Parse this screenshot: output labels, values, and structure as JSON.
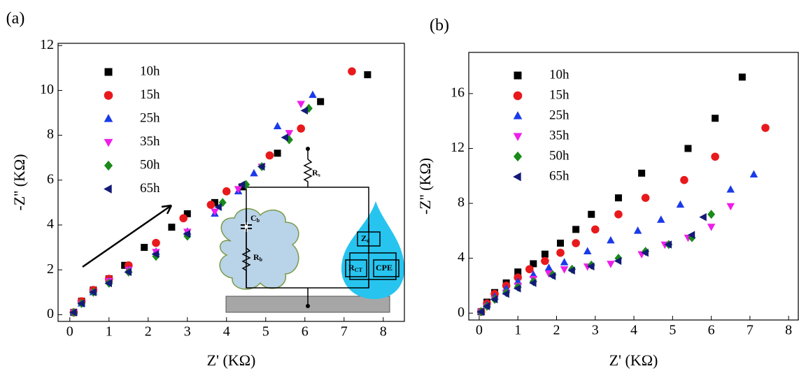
{
  "chart_data": [
    {
      "type": "scatter",
      "panel_label": "(a)",
      "x_label": "Z' (KΩ)",
      "y_label": "-Z'' (KΩ)",
      "xlim": [
        -0.3,
        8.54
      ],
      "ylim": [
        -0.3,
        12.1
      ],
      "xticks": [
        0,
        1,
        2,
        3,
        4,
        5,
        6,
        7,
        8
      ],
      "yticks": [
        0,
        2,
        4,
        6,
        8,
        10,
        12
      ],
      "legend_loc": "upper left",
      "series": [
        {
          "name": "10h",
          "color": "#000000",
          "marker": "square",
          "x": [
            0.1,
            0.3,
            0.6,
            1.0,
            1.4,
            1.9,
            2.6,
            3.0,
            3.7,
            4.4,
            5.3,
            6.4,
            7.6
          ],
          "values": [
            0.1,
            0.6,
            1.1,
            1.6,
            2.2,
            3.0,
            3.9,
            4.5,
            5.0,
            5.7,
            7.2,
            9.5,
            10.7
          ]
        },
        {
          "name": "15h",
          "color": "#e8191c",
          "marker": "circle",
          "x": [
            0.1,
            0.3,
            0.6,
            1.0,
            1.5,
            2.2,
            2.9,
            3.6,
            4.0,
            5.1,
            5.9,
            7.2
          ],
          "values": [
            0.1,
            0.6,
            1.1,
            1.6,
            2.2,
            3.2,
            4.3,
            4.9,
            5.5,
            7.1,
            8.3,
            10.85
          ]
        },
        {
          "name": "25h",
          "color": "#1a3be8",
          "marker": "triangle-up",
          "x": [
            0.1,
            0.3,
            0.6,
            1.0,
            1.5,
            2.2,
            3.0,
            3.7,
            4.3,
            4.7,
            5.3,
            6.2
          ],
          "values": [
            0.1,
            0.5,
            1.0,
            1.5,
            2.0,
            2.8,
            3.7,
            4.5,
            5.5,
            6.3,
            8.4,
            9.8
          ]
        },
        {
          "name": "35h",
          "color": "#ee1ee8",
          "marker": "triangle-down",
          "x": [
            0.1,
            0.3,
            0.6,
            1.0,
            1.5,
            2.2,
            3.0,
            3.7,
            4.3,
            4.9,
            5.6,
            5.9
          ],
          "values": [
            0.1,
            0.5,
            1.0,
            1.5,
            2.0,
            2.8,
            3.7,
            4.6,
            5.6,
            6.6,
            8.1,
            9.4
          ]
        },
        {
          "name": "50h",
          "color": "#1a8a1a",
          "marker": "diamond",
          "x": [
            0.1,
            0.3,
            0.6,
            1.0,
            1.5,
            2.2,
            3.0,
            3.9,
            4.5,
            4.9,
            5.6,
            6.1
          ],
          "values": [
            0.1,
            0.5,
            1.0,
            1.4,
            1.9,
            2.6,
            3.5,
            5.0,
            5.8,
            6.6,
            7.8,
            9.2
          ]
        },
        {
          "name": "65h",
          "color": "#141a78",
          "marker": "triangle-left",
          "x": [
            0.1,
            0.3,
            0.6,
            1.0,
            1.5,
            2.2,
            3.0,
            3.8,
            4.4,
            4.9,
            5.5,
            6.0
          ],
          "values": [
            0.1,
            0.5,
            1.0,
            1.4,
            1.9,
            2.7,
            3.6,
            4.8,
            5.8,
            6.6,
            7.9,
            9.1
          ]
        }
      ],
      "inset_labels": [
        {
          "main": "R",
          "sub": "s"
        },
        {
          "main": "C",
          "sub": "b"
        },
        {
          "main": "R",
          "sub": "b"
        },
        {
          "main": "Z",
          "sub": "d"
        },
        {
          "main": "R",
          "sub": "CT"
        },
        {
          "main": "CPE",
          "sub": ""
        }
      ]
    },
    {
      "type": "scatter",
      "panel_label": "(b)",
      "x_label": "Z' (KΩ)",
      "y_label": "-Z'' (KΩ)",
      "xlim": [
        -0.27,
        8.25
      ],
      "ylim": [
        -0.5,
        19.0
      ],
      "xticks": [
        0,
        1,
        2,
        3,
        4,
        5,
        6,
        7,
        8
      ],
      "yticks": [
        0,
        4,
        8,
        12,
        16
      ],
      "legend_loc": "upper left",
      "series": [
        {
          "name": "10h",
          "color": "#000000",
          "marker": "square",
          "x": [
            0.05,
            0.2,
            0.4,
            0.7,
            1.0,
            1.4,
            1.7,
            2.1,
            2.5,
            2.9,
            3.6,
            4.2,
            5.4,
            6.1,
            6.8
          ],
          "values": [
            0.1,
            0.8,
            1.5,
            2.2,
            3.0,
            3.6,
            4.3,
            5.1,
            6.1,
            7.2,
            8.4,
            10.2,
            12.0,
            14.2,
            17.2
          ]
        },
        {
          "name": "15h",
          "color": "#e8191c",
          "marker": "circle",
          "x": [
            0.05,
            0.2,
            0.4,
            0.7,
            1.0,
            1.3,
            1.7,
            2.1,
            2.5,
            3.0,
            3.6,
            4.3,
            5.3,
            6.1,
            7.4
          ],
          "values": [
            0.1,
            0.7,
            1.4,
            2.0,
            2.6,
            3.2,
            3.8,
            4.4,
            5.1,
            6.1,
            7.2,
            8.4,
            9.7,
            11.4,
            13.5
          ]
        },
        {
          "name": "25h",
          "color": "#1a3be8",
          "marker": "triangle-up",
          "x": [
            0.05,
            0.2,
            0.4,
            0.7,
            1.0,
            1.4,
            1.8,
            2.2,
            2.8,
            3.4,
            4.1,
            4.7,
            5.2,
            6.5,
            7.1
          ],
          "values": [
            0.1,
            0.6,
            1.2,
            1.8,
            2.3,
            2.8,
            3.3,
            3.7,
            4.5,
            5.3,
            6.0,
            6.8,
            7.9,
            9.0,
            10.1
          ]
        },
        {
          "name": "35h",
          "color": "#ee1ee8",
          "marker": "triangle-down",
          "x": [
            0.05,
            0.2,
            0.4,
            0.7,
            1.0,
            1.4,
            1.8,
            2.2,
            2.8,
            3.4,
            4.2,
            4.8,
            5.4,
            6.0,
            6.5
          ],
          "values": [
            0.1,
            0.5,
            1.0,
            1.5,
            2.0,
            2.5,
            2.9,
            3.2,
            3.4,
            3.6,
            4.3,
            5.0,
            5.5,
            6.3,
            7.8
          ]
        },
        {
          "name": "50h",
          "color": "#1a8a1a",
          "marker": "diamond",
          "x": [
            0.05,
            0.2,
            0.4,
            0.7,
            1.0,
            1.4,
            1.9,
            2.4,
            2.9,
            3.6,
            4.3,
            4.9,
            5.5,
            6.0
          ],
          "values": [
            0.1,
            0.5,
            1.0,
            1.5,
            1.9,
            2.3,
            2.8,
            3.2,
            3.5,
            4.0,
            4.5,
            5.0,
            5.5,
            7.2
          ]
        },
        {
          "name": "65h",
          "color": "#141a78",
          "marker": "triangle-left",
          "x": [
            0.05,
            0.2,
            0.4,
            0.7,
            1.0,
            1.4,
            1.9,
            2.4,
            2.9,
            3.6,
            4.3,
            4.9,
            5.5,
            5.8
          ],
          "values": [
            0.1,
            0.5,
            1.0,
            1.4,
            1.8,
            2.2,
            2.7,
            3.1,
            3.4,
            3.8,
            4.4,
            5.0,
            5.7,
            7.0
          ]
        }
      ]
    }
  ]
}
